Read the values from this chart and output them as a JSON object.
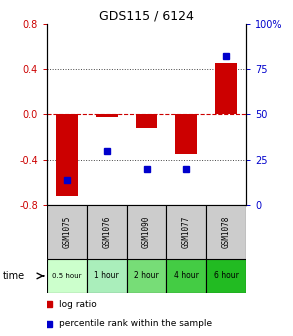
{
  "title": "GDS115 / 6124",
  "samples": [
    "GSM1075",
    "GSM1076",
    "GSM1090",
    "GSM1077",
    "GSM1078"
  ],
  "time_labels": [
    "0.5 hour",
    "1 hour",
    "2 hour",
    "4 hour",
    "6 hour"
  ],
  "time_colors": [
    "#ccffcc",
    "#aaeebb",
    "#77dd77",
    "#44cc44",
    "#22bb22"
  ],
  "log_ratio": [
    -0.72,
    -0.02,
    -0.12,
    -0.35,
    0.45
  ],
  "percentile": [
    14,
    30,
    20,
    20,
    82
  ],
  "bar_color": "#cc0000",
  "dot_color": "#0000cc",
  "left_yticks": [
    -0.8,
    -0.4,
    0.0,
    0.4,
    0.8
  ],
  "right_yticks": [
    0,
    25,
    50,
    75,
    100
  ],
  "ylim_left": [
    -0.8,
    0.8
  ],
  "ylim_right": [
    0,
    100
  ],
  "grid_lines_dotted": [
    -0.4,
    0.4
  ],
  "zero_line": 0.0,
  "bg_color": "#ffffff"
}
